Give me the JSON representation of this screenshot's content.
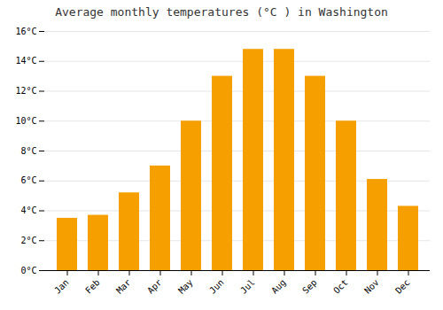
{
  "chart_data": {
    "type": "bar",
    "title": "Average monthly temperatures (°C ) in Washington",
    "categories": [
      "Jan",
      "Feb",
      "Mar",
      "Apr",
      "May",
      "Jun",
      "Jul",
      "Aug",
      "Sep",
      "Oct",
      "Nov",
      "Dec"
    ],
    "values": [
      3.5,
      3.7,
      5.2,
      7.0,
      10.0,
      13.0,
      14.8,
      14.8,
      13.0,
      10.0,
      6.1,
      4.3
    ],
    "color": "#F5A000",
    "ylim": [
      0,
      16
    ],
    "yticks": [
      {
        "value": 0,
        "label": "0°C"
      },
      {
        "value": 2,
        "label": "2°C"
      },
      {
        "value": 4,
        "label": "4°C"
      },
      {
        "value": 6,
        "label": "6°C"
      },
      {
        "value": 8,
        "label": "8°C"
      },
      {
        "value": 10,
        "label": "10°C"
      },
      {
        "value": 12,
        "label": "12°C"
      },
      {
        "value": 14,
        "label": "14°C"
      },
      {
        "value": 16,
        "label": "16°C"
      }
    ],
    "grid": true
  }
}
